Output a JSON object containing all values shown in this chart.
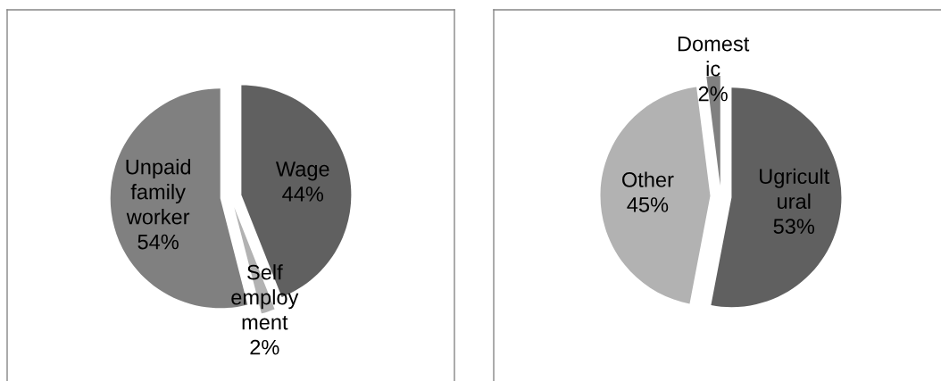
{
  "chart_data": [
    {
      "type": "pie",
      "categories": [
        "Wage",
        "Self\nemploy\nment",
        "Unpaid\nfamily\nworker"
      ],
      "values": [
        44,
        2,
        54
      ],
      "colors": [
        "#606060",
        "#b2b2b2",
        "#808080"
      ],
      "value_labels": [
        "44%",
        "2%",
        "54%"
      ]
    },
    {
      "type": "pie",
      "categories": [
        "Ugricult\nural",
        "Other",
        "Domest\nic"
      ],
      "values": [
        53,
        45,
        2
      ],
      "colors": [
        "#606060",
        "#b2b2b2",
        "#808080"
      ],
      "value_labels": [
        "53%",
        "45%",
        "2%"
      ]
    }
  ]
}
